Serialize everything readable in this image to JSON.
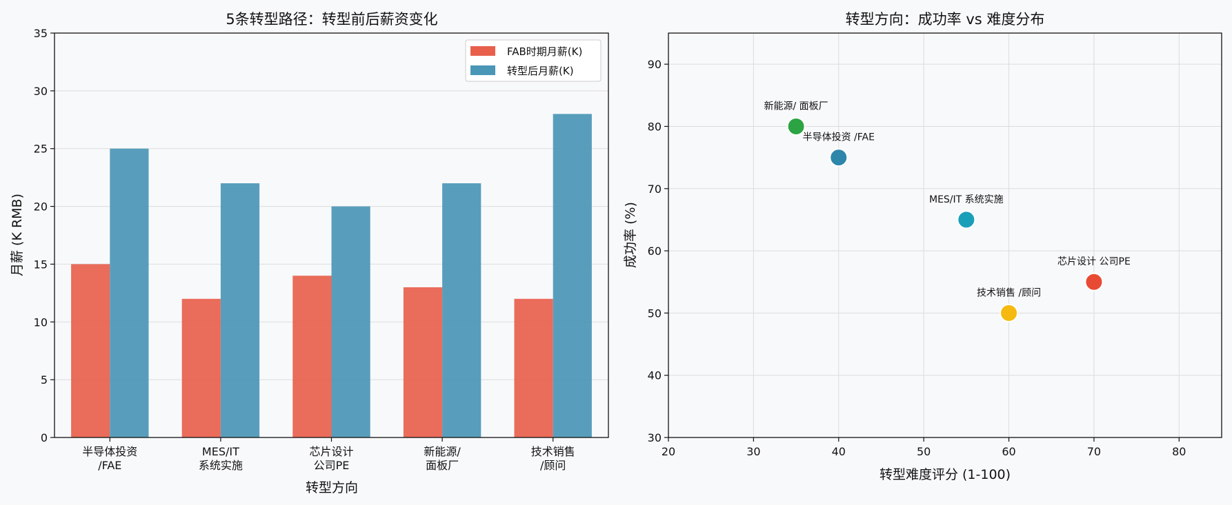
{
  "chart_data": [
    {
      "type": "bar",
      "title": "5条转型路径：转型前后薪资变化",
      "xlabel": "转型方向",
      "ylabel": "月薪 (K RMB)",
      "ylim": [
        0,
        35
      ],
      "yticks": [
        0,
        5,
        10,
        15,
        20,
        25,
        30,
        35
      ],
      "grid": true,
      "legend_position": "top-right",
      "categories": [
        "半导体投资\n/FAE",
        "MES/IT\n系统实施",
        "芯片设计\n公司PE",
        "新能源/\n面板厂",
        "技术销售\n/顾问"
      ],
      "series": [
        {
          "name": "FAB时期月薪(K)",
          "values": [
            15,
            12,
            14,
            13,
            12
          ],
          "color": "#e8604c"
        },
        {
          "name": "转型后月薪(K)",
          "values": [
            25,
            22,
            20,
            22,
            28
          ],
          "color": "#4a96b6"
        }
      ]
    },
    {
      "type": "scatter",
      "title": "转型方向：成功率 vs 难度分布",
      "xlabel": "转型难度评分 (1-100)",
      "ylabel": "成功率 (%)",
      "xlim": [
        20,
        85
      ],
      "ylim": [
        30,
        95
      ],
      "xticks": [
        20,
        30,
        40,
        50,
        60,
        70,
        80
      ],
      "yticks": [
        30,
        40,
        50,
        60,
        70,
        80,
        90
      ],
      "grid": true,
      "points": [
        {
          "label": "半导体投资 /FAE",
          "x": 40,
          "y": 75,
          "color": "#2e86ab"
        },
        {
          "label": "MES/IT 系统实施",
          "x": 55,
          "y": 65,
          "color": "#1a9fb8"
        },
        {
          "label": "芯片设计 公司PE",
          "x": 70,
          "y": 55,
          "color": "#e84a34"
        },
        {
          "label": "新能源/ 面板厂",
          "x": 35,
          "y": 80,
          "color": "#2ca443"
        },
        {
          "label": "技术销售 /顾问",
          "x": 60,
          "y": 50,
          "color": "#f5b90f"
        }
      ]
    }
  ]
}
